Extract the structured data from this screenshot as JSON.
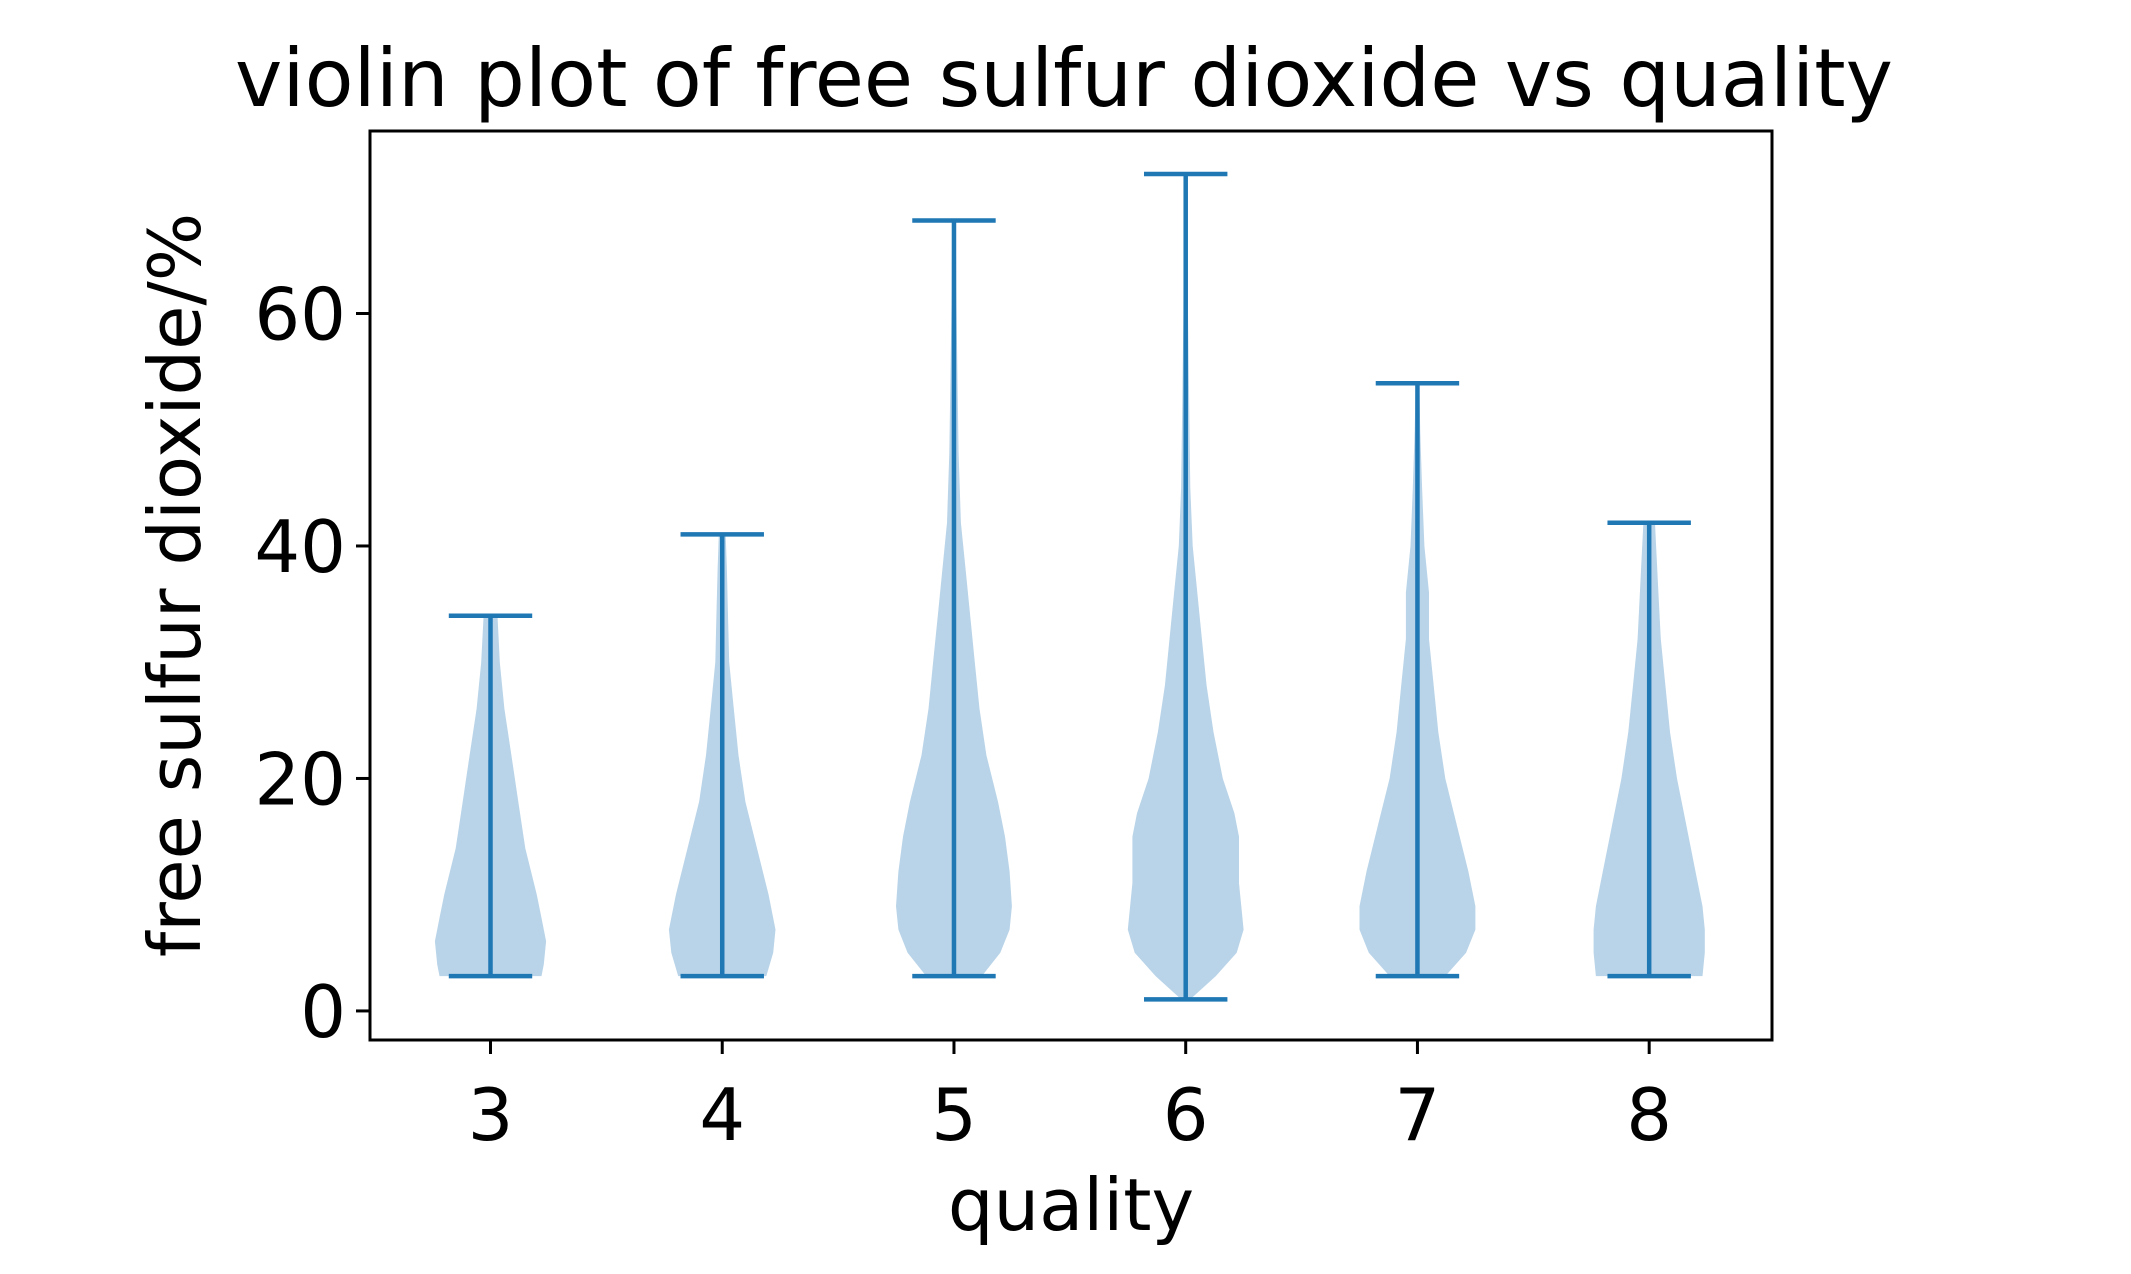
{
  "chart_data": {
    "type": "violin",
    "title": "violin plot of free sulfur dioxide vs quality",
    "xlabel": "quality",
    "ylabel": "free sulfur dioxide/%",
    "categories": [
      "3",
      "4",
      "5",
      "6",
      "7",
      "8"
    ],
    "xlim": [
      2.48,
      8.53
    ],
    "ylim": [
      -2.5,
      75.7
    ],
    "yticks": [
      0,
      20,
      40,
      60
    ],
    "grid": false,
    "colors": {
      "body": "#b9d4e8",
      "lines": "#1f77b4"
    },
    "violins": [
      {
        "category": "3",
        "min": 3,
        "max": 34,
        "profile": [
          [
            3,
            0.22
          ],
          [
            4,
            0.23
          ],
          [
            6,
            0.24
          ],
          [
            8,
            0.22
          ],
          [
            10,
            0.2
          ],
          [
            14,
            0.15
          ],
          [
            18,
            0.12
          ],
          [
            22,
            0.09
          ],
          [
            26,
            0.06
          ],
          [
            30,
            0.04
          ],
          [
            34,
            0.03
          ]
        ]
      },
      {
        "category": "4",
        "min": 3,
        "max": 41,
        "profile": [
          [
            3,
            0.19
          ],
          [
            5,
            0.22
          ],
          [
            7,
            0.23
          ],
          [
            10,
            0.2
          ],
          [
            14,
            0.15
          ],
          [
            18,
            0.1
          ],
          [
            22,
            0.07
          ],
          [
            26,
            0.05
          ],
          [
            30,
            0.03
          ],
          [
            34,
            0.025
          ],
          [
            38,
            0.02
          ],
          [
            41,
            0.015
          ]
        ]
      },
      {
        "category": "5",
        "min": 3,
        "max": 68,
        "profile": [
          [
            3,
            0.12
          ],
          [
            5,
            0.2
          ],
          [
            7,
            0.24
          ],
          [
            9,
            0.25
          ],
          [
            12,
            0.24
          ],
          [
            15,
            0.22
          ],
          [
            18,
            0.19
          ],
          [
            22,
            0.14
          ],
          [
            26,
            0.11
          ],
          [
            30,
            0.09
          ],
          [
            34,
            0.07
          ],
          [
            38,
            0.05
          ],
          [
            42,
            0.03
          ],
          [
            48,
            0.02
          ],
          [
            55,
            0.015
          ],
          [
            62,
            0.01
          ],
          [
            68,
            0.008
          ]
        ]
      },
      {
        "category": "6",
        "min": 1,
        "max": 72,
        "profile": [
          [
            1,
            0.02
          ],
          [
            3,
            0.13
          ],
          [
            5,
            0.22
          ],
          [
            7,
            0.25
          ],
          [
            9,
            0.24
          ],
          [
            11,
            0.23
          ],
          [
            13,
            0.23
          ],
          [
            15,
            0.23
          ],
          [
            17,
            0.21
          ],
          [
            20,
            0.16
          ],
          [
            24,
            0.12
          ],
          [
            28,
            0.09
          ],
          [
            32,
            0.07
          ],
          [
            36,
            0.05
          ],
          [
            40,
            0.03
          ],
          [
            45,
            0.02
          ],
          [
            52,
            0.015
          ],
          [
            60,
            0.01
          ],
          [
            72,
            0.008
          ]
        ]
      },
      {
        "category": "7",
        "min": 3,
        "max": 54,
        "profile": [
          [
            3,
            0.12
          ],
          [
            5,
            0.21
          ],
          [
            7,
            0.25
          ],
          [
            9,
            0.25
          ],
          [
            12,
            0.22
          ],
          [
            16,
            0.17
          ],
          [
            20,
            0.12
          ],
          [
            24,
            0.09
          ],
          [
            28,
            0.07
          ],
          [
            32,
            0.05
          ],
          [
            36,
            0.05
          ],
          [
            40,
            0.03
          ],
          [
            45,
            0.02
          ],
          [
            50,
            0.012
          ],
          [
            54,
            0.008
          ]
        ]
      },
      {
        "category": "8",
        "min": 3,
        "max": 42,
        "profile": [
          [
            3,
            0.23
          ],
          [
            5,
            0.24
          ],
          [
            7,
            0.24
          ],
          [
            9,
            0.23
          ],
          [
            12,
            0.2
          ],
          [
            16,
            0.16
          ],
          [
            20,
            0.12
          ],
          [
            24,
            0.09
          ],
          [
            28,
            0.07
          ],
          [
            32,
            0.05
          ],
          [
            36,
            0.04
          ],
          [
            40,
            0.03
          ],
          [
            42,
            0.025
          ]
        ]
      }
    ]
  }
}
